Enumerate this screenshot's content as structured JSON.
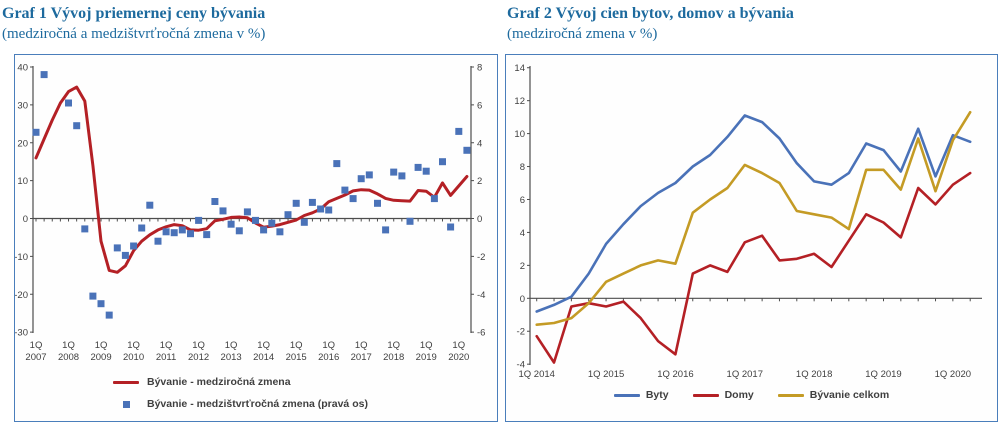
{
  "colors": {
    "title": "#1d6a9e",
    "box_border": "#4a7ebb",
    "axis": "#4d4d4d",
    "tick_label": "#404040",
    "legend_text": "#3f3f3f",
    "red": "#b42025",
    "blue": "#4a72b8",
    "yellow": "#c49b25"
  },
  "graf1": {
    "title": "Graf 1 Vývoj priemernej ceny bývania",
    "subtitle": "(medziročná a medzištvrťročná zmena v %)",
    "legend": [
      {
        "label": "Bývanie - medziročná zmena",
        "marker": "red-line"
      },
      {
        "label": "Bývanie - medzištvrťročná zmena (pravá os)",
        "marker": "blue-square"
      }
    ]
  },
  "graf2": {
    "title": "Graf 2 Vývoj cien bytov, domov a bývania",
    "subtitle": "(medziročná zmena v %)",
    "legend": [
      {
        "label": "Byty",
        "marker": "blue-line"
      },
      {
        "label": "Domy",
        "marker": "red-line"
      },
      {
        "label": "Bývanie celkom",
        "marker": "yellow-line"
      }
    ]
  },
  "chart_data": [
    {
      "type": "line+scatter",
      "title": "Graf 1 Vývoj priemernej ceny bývania (medziročná a medzištvrťročná zmena v %)",
      "x_quarters_start": "1Q 2007",
      "x_quarters_end": "2Q 2020",
      "x_tick_prefix": "1Q",
      "x_tick_years": [
        "2007",
        "2008",
        "2009",
        "2010",
        "2011",
        "2012",
        "2013",
        "2014",
        "2015",
        "2016",
        "2017",
        "2018",
        "2019",
        "2020"
      ],
      "left_axis": {
        "range": [
          -30,
          40
        ],
        "ticks": [
          40,
          30,
          20,
          10,
          0,
          -10,
          -20,
          -30
        ]
      },
      "right_axis": {
        "range": [
          -6,
          8
        ],
        "ticks": [
          8,
          6,
          4,
          2,
          0,
          -2,
          -4,
          -6
        ]
      },
      "grid": false,
      "legend_position": "bottom",
      "series": [
        {
          "name": "Bývanie - medziročná zmena",
          "type": "line",
          "axis": "left",
          "color_key": "red",
          "values": [
            16,
            21,
            26,
            30.5,
            33.5,
            34.7,
            31,
            14,
            -6,
            -13.7,
            -14.2,
            -12.5,
            -8.5,
            -6,
            -4.3,
            -3.0,
            -2.2,
            -1.6,
            -1.9,
            -3.0,
            -3.1,
            -2.7,
            -0.6,
            -0.2,
            0.3,
            0.4,
            0.2,
            -1.2,
            -2.3,
            -2.0,
            -1.6,
            -1.0,
            -0.4,
            0.8,
            1.5,
            2.5,
            4.4,
            5.3,
            6.2,
            7.3,
            7.6,
            7.5,
            6.5,
            5.3,
            4.8,
            4.7,
            4.6,
            7.4,
            7.2,
            5.6,
            9.4,
            6.1,
            8.6,
            11.1
          ]
        },
        {
          "name": "Bývanie - medzištvrťročná zmena (pravá os)",
          "type": "scatter",
          "axis": "right",
          "color_key": "blue",
          "values": [
            4.55,
            7.6,
            null,
            null,
            6.1,
            4.9,
            -0.55,
            -4.1,
            -4.5,
            -5.1,
            -1.55,
            -1.95,
            -1.45,
            -0.5,
            0.7,
            -1.2,
            -0.7,
            -0.75,
            -0.6,
            -0.8,
            -0.1,
            -0.85,
            0.9,
            0.4,
            -0.3,
            -0.65,
            0.35,
            -0.1,
            -0.6,
            -0.25,
            -0.7,
            0.2,
            0.8,
            -0.2,
            0.85,
            0.5,
            0.45,
            2.9,
            1.5,
            1.05,
            2.1,
            2.3,
            0.8,
            -0.6,
            2.45,
            2.25,
            -0.15,
            2.7,
            2.5,
            1.05,
            3.0,
            -0.45,
            4.6,
            3.6
          ]
        }
      ]
    },
    {
      "type": "line",
      "title": "Graf 2 Vývoj cien bytov, domov a bývania (medziročná zmena v %)",
      "x_quarters_start": "1Q 2014",
      "x_quarters_end": "2Q 2020",
      "x_tick_labels": [
        "1Q 2014",
        "1Q 2015",
        "1Q 2016",
        "1Q 2017",
        "1Q 2018",
        "1Q 2019",
        "1Q 2020"
      ],
      "y_axis": {
        "range": [
          -4,
          14
        ],
        "ticks": [
          14,
          12,
          10,
          8,
          6,
          4,
          2,
          0,
          -2,
          -4
        ]
      },
      "grid": false,
      "legend_position": "bottom",
      "series": [
        {
          "name": "Byty",
          "type": "line",
          "color_key": "blue",
          "values": [
            -0.8,
            -0.4,
            0.1,
            1.5,
            3.3,
            4.5,
            5.6,
            6.4,
            7.0,
            8.0,
            8.7,
            9.8,
            11.1,
            10.7,
            9.7,
            8.2,
            7.1,
            6.9,
            7.6,
            9.4,
            9.0,
            7.7,
            10.3,
            7.4,
            9.9,
            9.5
          ]
        },
        {
          "name": "Domy",
          "type": "line",
          "color_key": "red",
          "values": [
            -2.3,
            -3.9,
            -0.5,
            -0.3,
            -0.5,
            -0.2,
            -1.2,
            -2.6,
            -3.4,
            1.5,
            2.0,
            1.6,
            3.4,
            3.8,
            2.3,
            2.4,
            2.7,
            1.9,
            3.5,
            5.1,
            4.6,
            3.7,
            6.7,
            5.7,
            6.9,
            7.6
          ]
        },
        {
          "name": "Bývanie celkom",
          "type": "line",
          "color_key": "yellow",
          "values": [
            -1.6,
            -1.5,
            -1.2,
            -0.3,
            1.0,
            1.5,
            2.0,
            2.3,
            2.1,
            5.2,
            6.0,
            6.7,
            8.1,
            7.6,
            7.0,
            5.3,
            5.1,
            4.9,
            4.2,
            7.8,
            7.8,
            6.6,
            9.7,
            6.5,
            9.6,
            11.3
          ]
        }
      ]
    }
  ]
}
